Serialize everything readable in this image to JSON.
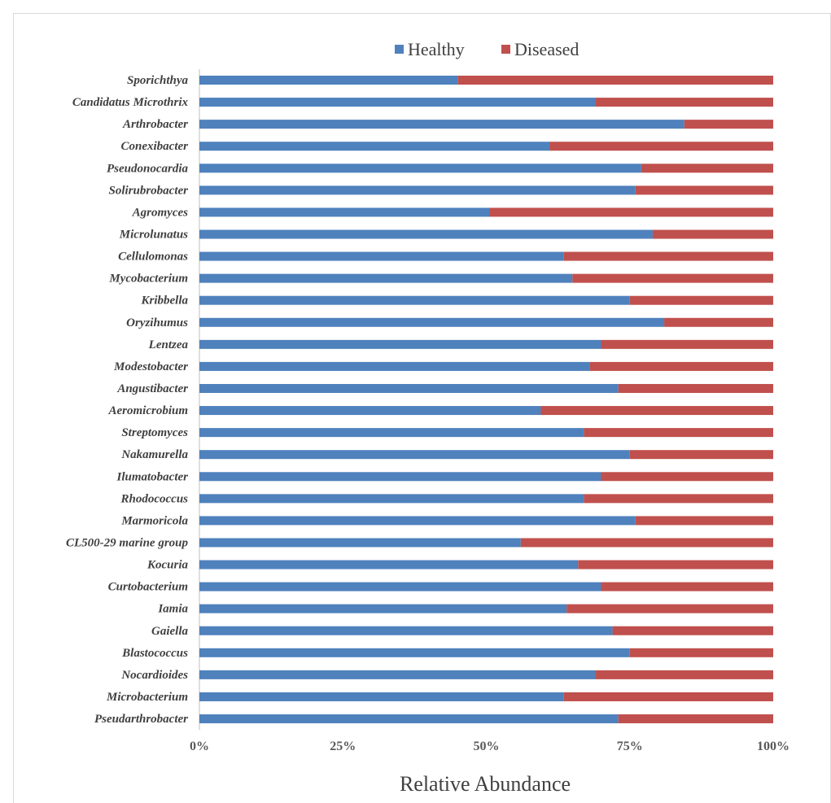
{
  "chart_data": {
    "type": "bar",
    "orientation": "horizontal",
    "stacked": "percent",
    "xlabel": "Relative Abundance",
    "xticks": [
      "0%",
      "25%",
      "50%",
      "75%",
      "100%"
    ],
    "xlim": [
      0,
      100
    ],
    "legend": {
      "position": "top",
      "entries": [
        "Healthy",
        "Diseased"
      ]
    },
    "colors": {
      "Healthy": "#4f81bd",
      "Diseased": "#c0504d"
    },
    "categories": [
      "Sporichthya",
      "Candidatus Microthrix",
      "Arthrobacter",
      "Conexibacter",
      "Pseudonocardia",
      "Solirubrobacter",
      "Agromyces",
      "Microlunatus",
      "Cellulomonas",
      "Mycobacterium",
      "Kribbella",
      "Oryzihumus",
      "Lentzea",
      "Modestobacter",
      "Angustibacter",
      "Aeromicrobium",
      "Streptomyces",
      "Nakamurella",
      "Ilumatobacter",
      "Rhodococcus",
      "Marmoricola",
      "CL500-29 marine group",
      "Kocuria",
      "Curtobacterium",
      "Iamia",
      "Gaiella",
      "Blastococcus",
      "Nocardioides",
      "Microbacterium",
      "Pseudarthrobacter"
    ],
    "series": [
      {
        "name": "Healthy",
        "values": [
          45,
          69,
          84.5,
          61,
          77,
          76,
          50.5,
          79,
          63.5,
          65,
          75,
          81,
          70,
          68,
          73,
          59.5,
          67,
          75,
          70,
          67,
          76,
          56,
          66,
          70,
          64,
          72,
          75,
          69,
          63.5,
          73
        ]
      },
      {
        "name": "Diseased",
        "values": [
          55,
          31,
          15.5,
          39,
          23,
          24,
          49.5,
          21,
          36.5,
          35,
          25,
          19,
          30,
          32,
          27,
          40.5,
          33,
          25,
          30,
          33,
          24,
          44,
          34,
          30,
          36,
          28,
          25,
          31,
          36.5,
          27
        ]
      }
    ]
  }
}
